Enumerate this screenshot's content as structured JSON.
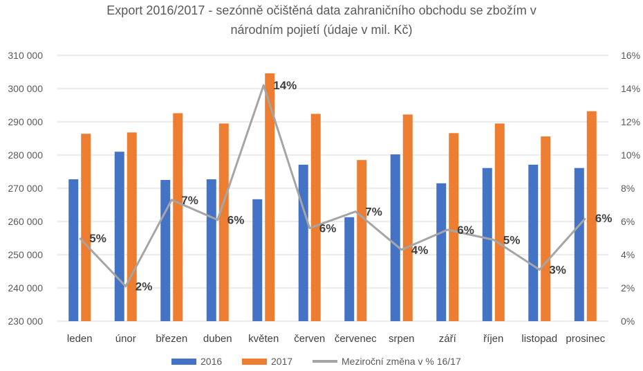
{
  "title_line1": "Export 2016/2017 - sezónně očištěná data zahraničního obchodu se zbožím v",
  "title_line2": "národním pojietí (údaje v mil. Kč)",
  "colors": {
    "s2016": "#4472C4",
    "s2017": "#ED7D31",
    "change": "#A5A5A5",
    "grid": "#D9D9D9"
  },
  "chart_data": {
    "type": "bar",
    "categories": [
      "leden",
      "únor",
      "březen",
      "duben",
      "květen",
      "červen",
      "červenec",
      "srpen",
      "září",
      "říjen",
      "listopad",
      "prosinec"
    ],
    "series": [
      {
        "name": "2016",
        "type": "bar",
        "axis": "left",
        "values": [
          272700,
          281000,
          272500,
          272700,
          266700,
          277100,
          261300,
          280200,
          271500,
          276100,
          277100,
          276100
        ]
      },
      {
        "name": "2017",
        "type": "bar",
        "axis": "left",
        "values": [
          286400,
          286800,
          292600,
          289500,
          304600,
          292400,
          278500,
          292200,
          286600,
          289500,
          285600,
          293200
        ]
      },
      {
        "name": "Meziroční změna v % 16/17",
        "type": "line",
        "axis": "right",
        "values": [
          5.0,
          2.1,
          7.3,
          6.1,
          14.2,
          5.6,
          6.6,
          4.3,
          5.5,
          4.9,
          3.1,
          6.2
        ],
        "labels": [
          "5%",
          "2%",
          "7%",
          "6%",
          "14%",
          "6%",
          "7%",
          "4%",
          "6%",
          "5%",
          "3%",
          "6%"
        ]
      }
    ],
    "y_left": {
      "min": 230000,
      "max": 310000,
      "ticks": [
        "230 000",
        "240 000",
        "250 000",
        "260 000",
        "270 000",
        "280 000",
        "290 000",
        "300 000",
        "310 000"
      ]
    },
    "y_right": {
      "min": 0,
      "max": 16,
      "ticks": [
        "0%",
        "2%",
        "4%",
        "6%",
        "8%",
        "10%",
        "12%",
        "14%",
        "16%"
      ]
    },
    "grid": true,
    "legend_position": "bottom"
  }
}
